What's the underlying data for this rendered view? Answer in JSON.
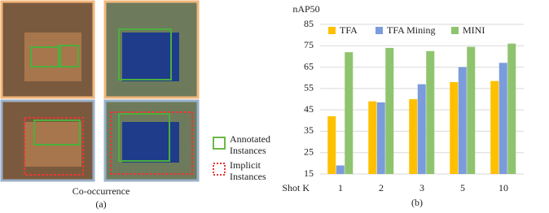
{
  "figure_a": {
    "caption": "Co-occurrence",
    "label": "(a)",
    "legend": [
      "Annotated Instances",
      "Implicit Instances"
    ]
  },
  "chart_data": {
    "type": "bar",
    "y_label": "nAP50",
    "x_label": "Shot K",
    "caption": "(b)",
    "categories": [
      "1",
      "2",
      "3",
      "5",
      "10"
    ],
    "series": [
      {
        "name": "TFA",
        "color": "#ffc000",
        "values": [
          42,
          49,
          50,
          58,
          58.5
        ]
      },
      {
        "name": "TFA Mining",
        "color": "#7a9cdc",
        "values": [
          19,
          48.5,
          57,
          65,
          67
        ]
      },
      {
        "name": "MINI",
        "color": "#8fc46e",
        "values": [
          72,
          74,
          72.5,
          74.5,
          76
        ]
      }
    ],
    "ylim": [
      15,
      85
    ],
    "yticks": [
      15,
      25,
      35,
      45,
      55,
      65,
      75,
      85
    ],
    "grid": true,
    "legend": "top"
  }
}
